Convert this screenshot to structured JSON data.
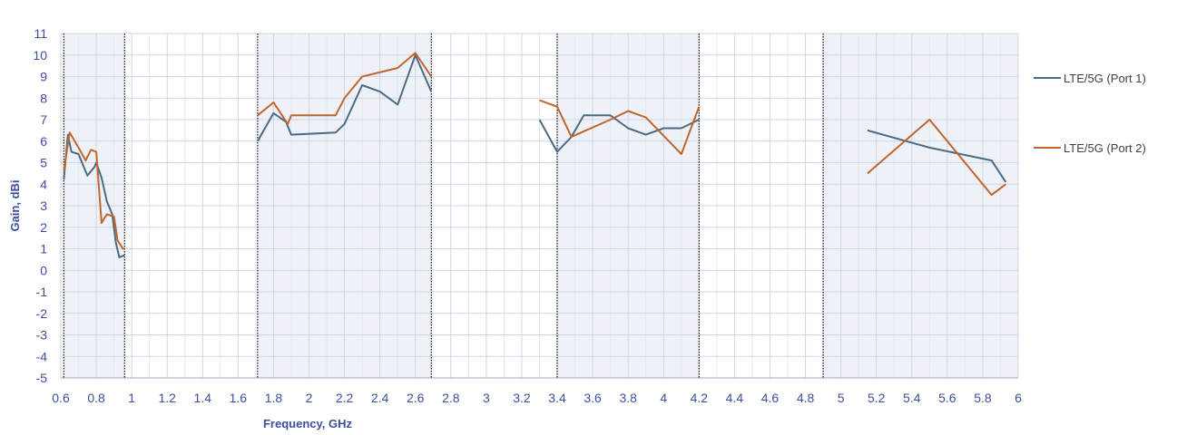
{
  "chart_data": {
    "type": "line",
    "title": "",
    "xlabel": "Frequency, GHz",
    "ylabel": "Gain, dBi",
    "xlim": [
      0.6,
      6
    ],
    "ylim": [
      -5,
      11
    ],
    "x_ticks": [
      "0.6",
      "0.8",
      "1",
      "1.2",
      "1.4",
      "1.6",
      "1.8",
      "2",
      "2.2",
      "2.4",
      "2.6",
      "2.8",
      "3",
      "3.2",
      "3.4",
      "3.6",
      "3.8",
      "4",
      "4.2",
      "4.4",
      "4.6",
      "4.8",
      "5",
      "5.2",
      "5.4",
      "5.6",
      "5.8",
      "6"
    ],
    "y_ticks": [
      "-5",
      "-4",
      "-3",
      "-2",
      "-1",
      "0",
      "1",
      "2",
      "3",
      "4",
      "5",
      "6",
      "7",
      "8",
      "9",
      "10",
      "11"
    ],
    "grid": true,
    "legend_position": "right",
    "shaded_bands": [
      [
        0.617,
        0.96
      ],
      [
        1.71,
        2.69
      ],
      [
        3.4,
        4.2
      ],
      [
        4.9,
        6.0
      ]
    ],
    "series": [
      {
        "name": "LTE/5G (Port 1)",
        "color": "#4a6b82",
        "segments": [
          [
            [
              0.617,
              4.2
            ],
            [
              0.64,
              6.3
            ],
            [
              0.66,
              5.5
            ],
            [
              0.7,
              5.4
            ],
            [
              0.72,
              5.0
            ],
            [
              0.75,
              4.4
            ],
            [
              0.79,
              4.8
            ],
            [
              0.8,
              5.0
            ],
            [
              0.83,
              4.3
            ],
            [
              0.86,
              3.2
            ],
            [
              0.89,
              2.6
            ],
            [
              0.91,
              1.3
            ],
            [
              0.93,
              0.6
            ],
            [
              0.96,
              0.7
            ]
          ],
          [
            [
              1.71,
              6.0
            ],
            [
              1.8,
              7.3
            ],
            [
              1.87,
              6.9
            ],
            [
              1.9,
              6.3
            ],
            [
              2.15,
              6.4
            ],
            [
              2.2,
              6.8
            ],
            [
              2.3,
              8.6
            ],
            [
              2.4,
              8.3
            ],
            [
              2.5,
              7.7
            ],
            [
              2.6,
              10.0
            ],
            [
              2.69,
              8.3
            ]
          ],
          [
            [
              3.3,
              7.0
            ],
            [
              3.4,
              5.5
            ],
            [
              3.48,
              6.2
            ],
            [
              3.55,
              7.2
            ],
            [
              3.7,
              7.2
            ],
            [
              3.8,
              6.6
            ],
            [
              3.9,
              6.3
            ],
            [
              4.0,
              6.6
            ],
            [
              4.1,
              6.6
            ],
            [
              4.2,
              7.0
            ]
          ],
          [
            [
              5.15,
              6.5
            ],
            [
              5.5,
              5.7
            ],
            [
              5.85,
              5.1
            ],
            [
              5.93,
              4.1
            ]
          ]
        ]
      },
      {
        "name": "LTE/5G (Port 2)",
        "color": "#c0662d",
        "segments": [
          [
            [
              0.617,
              4.6
            ],
            [
              0.65,
              6.4
            ],
            [
              0.7,
              5.7
            ],
            [
              0.74,
              5.1
            ],
            [
              0.77,
              5.6
            ],
            [
              0.8,
              5.5
            ],
            [
              0.83,
              2.2
            ],
            [
              0.86,
              2.6
            ],
            [
              0.9,
              2.5
            ],
            [
              0.92,
              1.4
            ],
            [
              0.95,
              1.0
            ],
            [
              0.96,
              1.0
            ]
          ],
          [
            [
              1.71,
              7.2
            ],
            [
              1.8,
              7.8
            ],
            [
              1.88,
              6.8
            ],
            [
              1.9,
              7.2
            ],
            [
              2.15,
              7.2
            ],
            [
              2.2,
              8.0
            ],
            [
              2.3,
              9.0
            ],
            [
              2.5,
              9.4
            ],
            [
              2.6,
              10.1
            ],
            [
              2.69,
              9.0
            ]
          ],
          [
            [
              3.3,
              7.9
            ],
            [
              3.4,
              7.6
            ],
            [
              3.48,
              6.2
            ],
            [
              3.7,
              7.0
            ],
            [
              3.8,
              7.4
            ],
            [
              3.9,
              7.1
            ],
            [
              4.1,
              5.4
            ],
            [
              4.2,
              7.6
            ]
          ],
          [
            [
              5.15,
              4.5
            ],
            [
              5.5,
              7.0
            ],
            [
              5.85,
              3.5
            ],
            [
              5.93,
              4.0
            ]
          ]
        ]
      }
    ]
  }
}
